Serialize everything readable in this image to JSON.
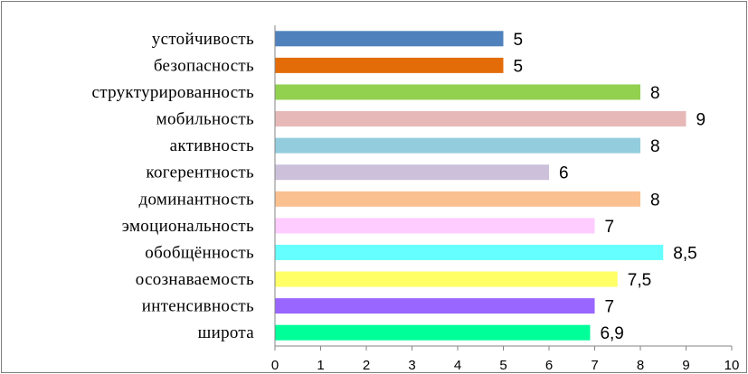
{
  "chart_data": {
    "type": "bar",
    "orientation": "horizontal",
    "categories": [
      "устойчивость",
      "безопасность",
      "структурированность",
      "мобильность",
      "активность",
      "когерентность",
      "доминантность",
      "эмоциональность",
      "обобщённость",
      "осознаваемость",
      "интенсивность",
      "широта"
    ],
    "values": [
      5,
      5,
      8,
      9,
      8,
      6,
      8,
      7,
      8.5,
      7.5,
      7,
      6.9
    ],
    "value_labels": [
      "5",
      "5",
      "8",
      "9",
      "8",
      "6",
      "8",
      "7",
      "8,5",
      "7,5",
      "7",
      "6,9"
    ],
    "colors": [
      "#4F81BD",
      "#E36C09",
      "#92D050",
      "#E6B9B8",
      "#93CDDD",
      "#CCC0DA",
      "#FAC090",
      "#FFCCFF",
      "#66FFFF",
      "#FFFF66",
      "#9966FF",
      "#00FF99"
    ],
    "xlim": [
      0,
      10
    ],
    "x_ticks": [
      "0",
      "1",
      "2",
      "3",
      "4",
      "5",
      "6",
      "7",
      "8",
      "9",
      "10"
    ],
    "title": "",
    "xlabel": "",
    "ylabel": "",
    "grid": false,
    "legend": "none"
  }
}
